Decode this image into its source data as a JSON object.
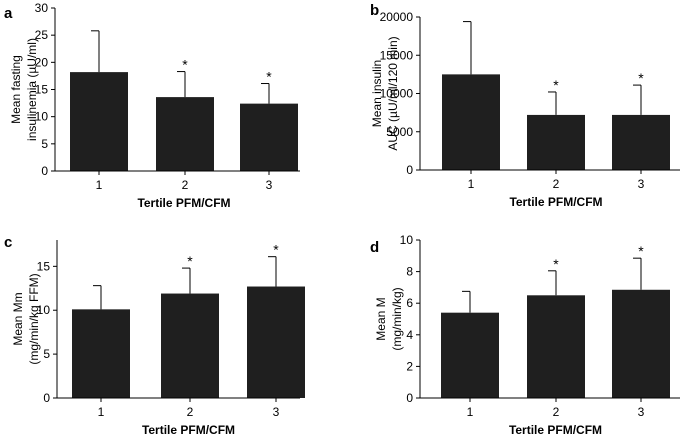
{
  "chart_data": [
    {
      "type": "bar",
      "panel": "a",
      "categories": [
        "1",
        "2",
        "3"
      ],
      "values": [
        18.2,
        13.6,
        12.4
      ],
      "errors": [
        7.6,
        4.7,
        3.7
      ],
      "significance": [
        "",
        "*",
        "*"
      ],
      "ylabel_lines": [
        "Mean fasting",
        "insulinemia  (µU/ml)"
      ],
      "xlabel": "Tertile PFM/CFM",
      "ylim": [
        0,
        30
      ],
      "yticks": [
        0,
        5,
        10,
        15,
        20,
        25,
        30
      ]
    },
    {
      "type": "bar",
      "panel": "b",
      "categories": [
        "1",
        "2",
        "3"
      ],
      "values": [
        12500,
        7200,
        7200
      ],
      "errors": [
        6900,
        3000,
        3900
      ],
      "significance": [
        "",
        "*",
        "*"
      ],
      "ylabel_lines": [
        "Mean insulin",
        "AUC (µU/ml/120 min)"
      ],
      "xlabel": "Tertile PFM/CFM",
      "ylim": [
        0,
        20000
      ],
      "yticks": [
        0,
        5000,
        10000,
        15000,
        20000
      ]
    },
    {
      "type": "bar",
      "panel": "c",
      "categories": [
        "1",
        "2",
        "3"
      ],
      "values": [
        10.1,
        11.9,
        12.7
      ],
      "errors": [
        2.7,
        2.9,
        3.4
      ],
      "significance": [
        "",
        "*",
        "*"
      ],
      "ylabel_lines": [
        "Mean Mm",
        "(mg/min/kg FFM)"
      ],
      "xlabel": "Tertile PFM/CFM",
      "ylim": [
        0,
        18
      ],
      "yticks": [
        0,
        5,
        10,
        15
      ]
    },
    {
      "type": "bar",
      "panel": "d",
      "categories": [
        "1",
        "2",
        "3"
      ],
      "values": [
        5.4,
        6.5,
        6.85
      ],
      "errors": [
        1.35,
        1.55,
        2.0
      ],
      "significance": [
        "",
        "*",
        "*"
      ],
      "ylabel_lines": [
        "Mean M",
        "(mg/min/kg)"
      ],
      "xlabel": "Tertile PFM/CFM",
      "ylim": [
        0,
        10
      ],
      "yticks": [
        0,
        2,
        4,
        6,
        8,
        10
      ]
    }
  ],
  "colors": {
    "bar": "#1f1f1f",
    "axis": "#000000"
  }
}
